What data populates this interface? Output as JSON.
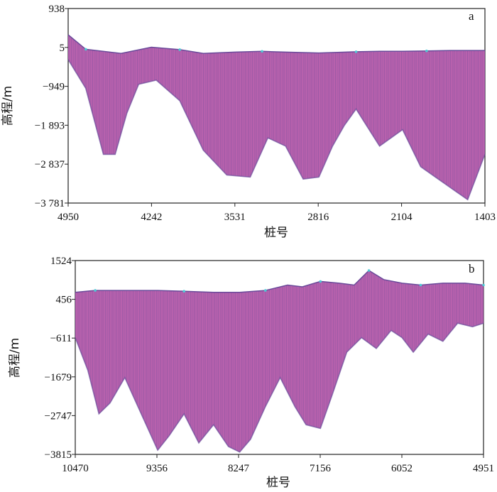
{
  "chart_data": [
    {
      "type": "area",
      "panel_label": "a",
      "xlabel": "桩号",
      "ylabel": "高程/m",
      "x_ticks": [
        "4950",
        "4242",
        "3531",
        "2816",
        "2104",
        "1403"
      ],
      "y_ticks": [
        "938",
        "5",
        "−949",
        "−1 893",
        "−2 837",
        "−3 781"
      ],
      "xlim": [
        4950,
        1403
      ],
      "ylim": [
        -3781,
        938
      ],
      "colors": {
        "fill": "#b359a9",
        "dense": "#6a4a9a",
        "hot": "#4fc9d4",
        "peak": "#f2e14a"
      },
      "surface": {
        "x": [
          4950,
          4800,
          4500,
          4242,
          4000,
          3800,
          3531,
          3300,
          3100,
          2816,
          2500,
          2300,
          2104,
          1900,
          1700,
          1403
        ],
        "y": [
          300,
          -50,
          -150,
          0,
          -60,
          -150,
          -120,
          -100,
          -120,
          -140,
          -110,
          -100,
          -100,
          -90,
          -80,
          -80
        ]
      },
      "bottom": {
        "x": [
          4950,
          4800,
          4650,
          4550,
          4450,
          4350,
          4200,
          4000,
          3800,
          3600,
          3400,
          3250,
          3100,
          2950,
          2816,
          2700,
          2600,
          2500,
          2300,
          2104,
          1950,
          1800,
          1650,
          1550,
          1403
        ],
        "y": [
          -300,
          -1000,
          -2600,
          -2600,
          -1600,
          -900,
          -800,
          -1300,
          -2500,
          -3100,
          -3150,
          -2200,
          -2400,
          -3200,
          -3150,
          -2400,
          -1900,
          -1500,
          -2400,
          -2000,
          -2900,
          -3200,
          -3500,
          -3700,
          -2600
        ]
      }
    },
    {
      "type": "area",
      "panel_label": "b",
      "xlabel": "桩号",
      "ylabel": "高程/m",
      "x_ticks": [
        "10470",
        "9356",
        "8247",
        "7156",
        "6052",
        "4951"
      ],
      "y_ticks": [
        "1524",
        "456",
        "−611",
        "−1679",
        "−2747",
        "−3815"
      ],
      "xlim": [
        10470,
        4951
      ],
      "ylim": [
        -3815,
        1524
      ],
      "colors": {
        "fill": "#b359a9",
        "dense": "#6a4a9a",
        "hot": "#4fc9d4",
        "peak": "#f2e14a"
      },
      "surface": {
        "x": [
          10470,
          10200,
          9800,
          9356,
          9000,
          8600,
          8247,
          7900,
          7600,
          7400,
          7156,
          6900,
          6700,
          6500,
          6300,
          6052,
          5800,
          5500,
          5200,
          4951
        ],
        "y": [
          650,
          700,
          700,
          700,
          680,
          650,
          650,
          700,
          850,
          800,
          950,
          900,
          850,
          1250,
          1000,
          900,
          850,
          900,
          900,
          850
        ]
      },
      "bottom": {
        "x": [
          10470,
          10300,
          10150,
          10000,
          9800,
          9600,
          9400,
          9356,
          9200,
          9000,
          8800,
          8600,
          8400,
          8247,
          8100,
          7900,
          7700,
          7500,
          7350,
          7156,
          7000,
          6800,
          6600,
          6400,
          6200,
          6052,
          5900,
          5700,
          5500,
          5300,
          5100,
          4951
        ],
        "y": [
          -600,
          -1500,
          -2700,
          -2400,
          -1700,
          -2600,
          -3500,
          -3700,
          -3300,
          -2700,
          -3500,
          -3000,
          -3600,
          -3750,
          -3400,
          -2500,
          -1700,
          -2500,
          -3000,
          -3100,
          -2200,
          -1000,
          -600,
          -900,
          -400,
          -600,
          -1000,
          -500,
          -700,
          -200,
          -300,
          -200
        ]
      }
    }
  ]
}
